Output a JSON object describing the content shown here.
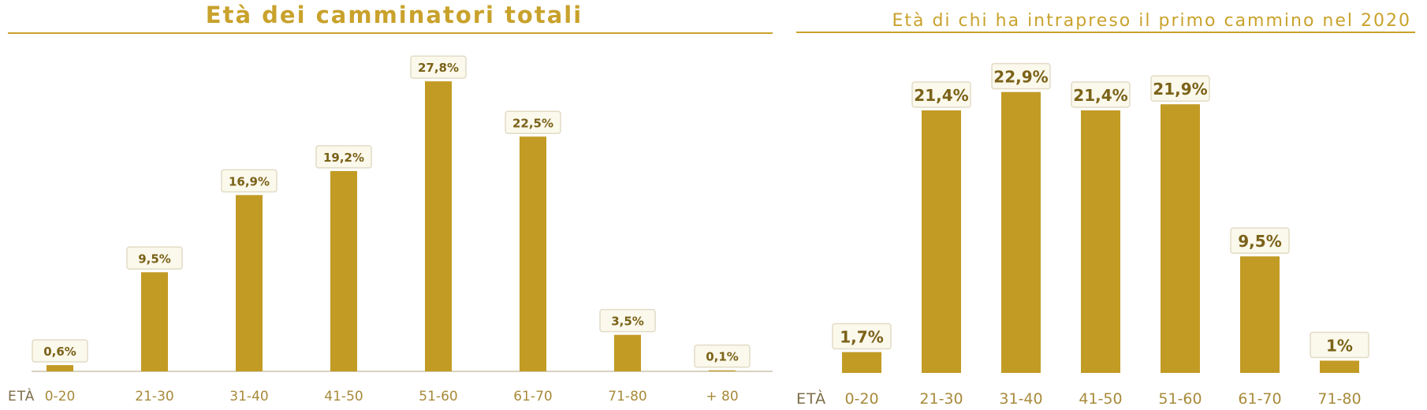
{
  "chart_data": [
    {
      "type": "bar",
      "title": "Età dei camminatori totali",
      "xlabel": "ETÀ",
      "ylabel": "",
      "categories": [
        "0-20",
        "21-30",
        "31-40",
        "41-50",
        "51-60",
        "61-70",
        "71-80",
        "+ 80"
      ],
      "values": [
        0.6,
        9.5,
        16.9,
        19.2,
        27.8,
        22.5,
        3.5,
        0.1
      ],
      "data_labels": [
        "0,6%",
        "9,5%",
        "16,9%",
        "19,2%",
        "27,8%",
        "22,5%",
        "3,5%",
        "0,1%"
      ],
      "ylim": [
        0,
        30
      ],
      "grid": false,
      "legend": "none",
      "colors": {
        "bar": "#c29b25",
        "title": "#c9a22c"
      }
    },
    {
      "type": "bar",
      "title": "Età di chi ha intrapreso il primo cammino nel 2020",
      "xlabel": "ETÀ",
      "ylabel": "",
      "categories": [
        "0-20",
        "21-30",
        "31-40",
        "41-50",
        "51-60",
        "61-70",
        "71-80"
      ],
      "values": [
        1.7,
        21.4,
        22.9,
        21.4,
        21.9,
        9.5,
        1
      ],
      "data_labels": [
        "1,7%",
        "21,4%",
        "22,9%",
        "21,4%",
        "21,9%",
        "9,5%",
        "1%"
      ],
      "ylim": [
        0,
        25
      ],
      "grid": false,
      "legend": "none",
      "colors": {
        "bar": "#c29b25",
        "title": "#c9a22c"
      }
    }
  ]
}
